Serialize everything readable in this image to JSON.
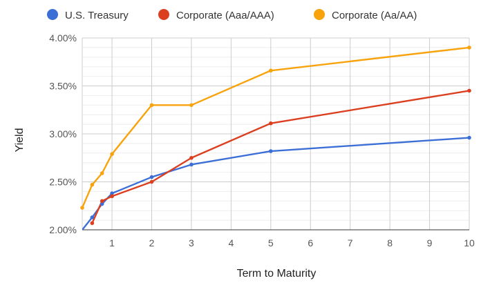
{
  "chart_data": {
    "type": "line",
    "title": "",
    "xlabel": "Term to Maturity",
    "ylabel": "Yield",
    "xlim": [
      0.25,
      10
    ],
    "ylim": [
      2.0,
      4.0
    ],
    "x_ticks": [
      1,
      2,
      3,
      4,
      5,
      6,
      7,
      8,
      9,
      10
    ],
    "y_ticks": [
      2.0,
      2.5,
      3.0,
      3.5,
      4.0
    ],
    "y_tick_labels": [
      "2.00%",
      "2.50%",
      "3.00%",
      "3.50%",
      "4.00%"
    ],
    "grid": true,
    "legend_position": "top",
    "series": [
      {
        "name": "U.S. Treasury",
        "color": "#3c6fd6",
        "points": [
          [
            0.25,
            2.0
          ],
          [
            0.5,
            2.13
          ],
          [
            0.75,
            2.27
          ],
          [
            1,
            2.38
          ],
          [
            2,
            2.55
          ],
          [
            3,
            2.68
          ],
          [
            5,
            2.82
          ],
          [
            10,
            2.96
          ]
        ]
      },
      {
        "name": "Corporate (Aaa/AAA)",
        "color": "#dc3f20",
        "points": [
          [
            0.5,
            2.07
          ],
          [
            0.75,
            2.3
          ],
          [
            1,
            2.35
          ],
          [
            2,
            2.5
          ],
          [
            3,
            2.75
          ],
          [
            5,
            3.11
          ],
          [
            10,
            3.45
          ]
        ]
      },
      {
        "name": "Corporate (Aa/AA)",
        "color": "#f8a20c",
        "points": [
          [
            0.25,
            2.23
          ],
          [
            0.5,
            2.47
          ],
          [
            0.75,
            2.59
          ],
          [
            1,
            2.79
          ],
          [
            2,
            3.3
          ],
          [
            3,
            3.3
          ],
          [
            5,
            3.66
          ],
          [
            10,
            3.9
          ]
        ]
      }
    ]
  }
}
